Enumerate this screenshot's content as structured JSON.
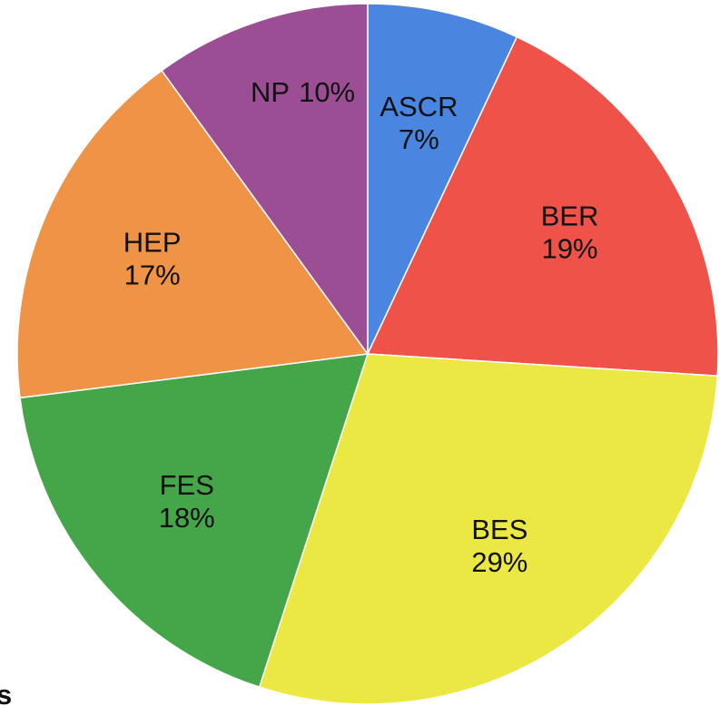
{
  "chart_data": {
    "type": "pie",
    "categories": [
      "ASCR",
      "BER",
      "BES",
      "FES",
      "HEP",
      "NP"
    ],
    "values": [
      7,
      19,
      29,
      18,
      17,
      10
    ],
    "value_labels": [
      "7%",
      "19%",
      "29%",
      "18%",
      "17%",
      "10%"
    ],
    "colors": [
      "#4a86e0",
      "#ef5249",
      "#ebe843",
      "#45a549",
      "#ef9347",
      "#9c4e94"
    ],
    "annotation": "s"
  }
}
